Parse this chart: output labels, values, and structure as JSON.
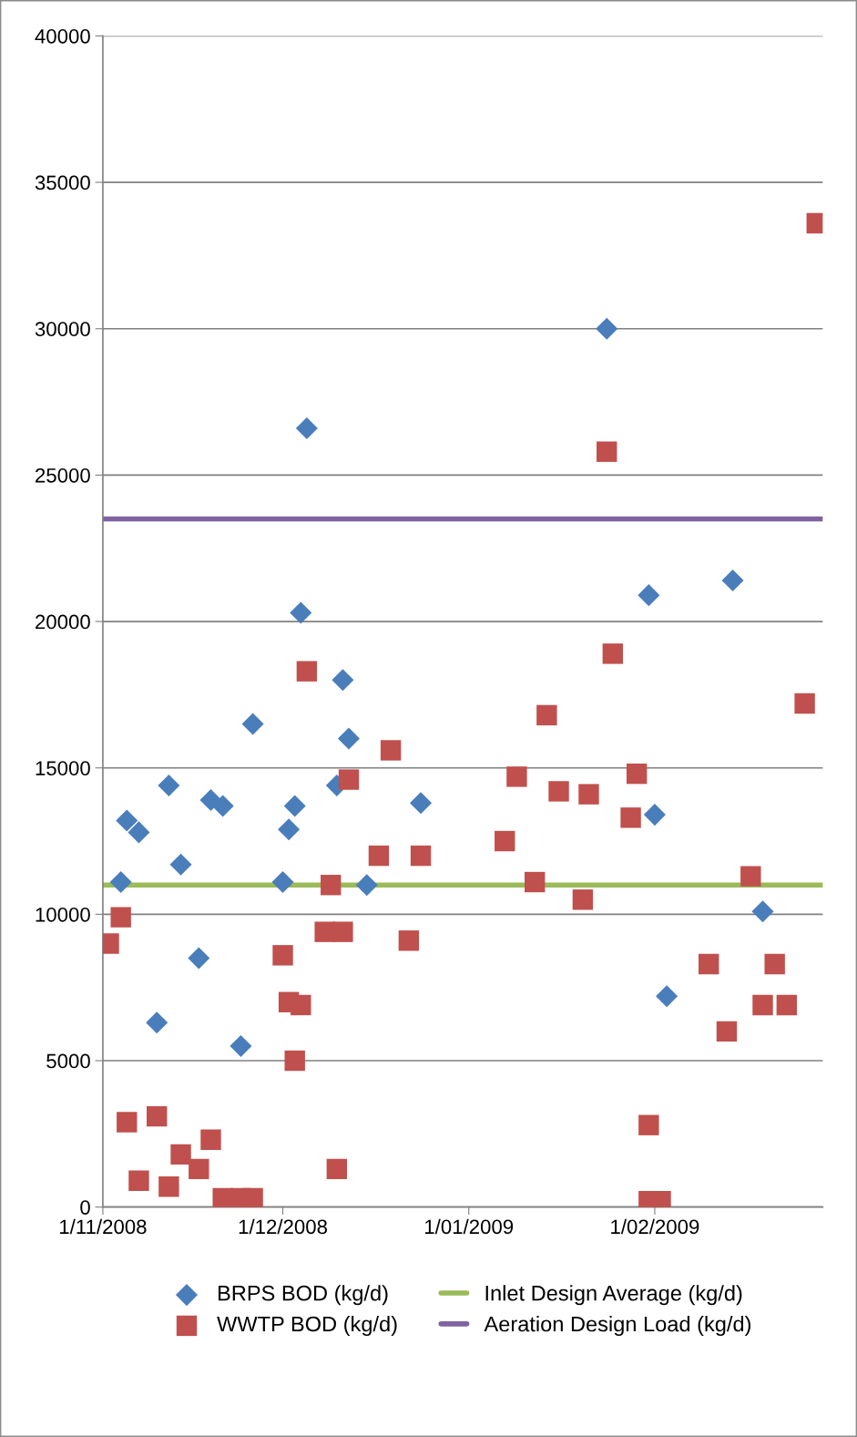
{
  "chart_data": {
    "type": "scatter",
    "series": [
      {
        "name": "BRPS BOD (kg/d)",
        "color": "#4a7ebb",
        "marker": "diamond",
        "x": [
          "2008-11-04",
          "2008-11-05",
          "2008-11-07",
          "2008-11-10",
          "2008-11-12",
          "2008-11-14",
          "2008-11-17",
          "2008-11-19",
          "2008-11-21",
          "2008-11-24",
          "2008-11-26",
          "2008-12-01",
          "2008-12-02",
          "2008-12-03",
          "2008-12-04",
          "2008-12-05",
          "2008-12-10",
          "2008-12-11",
          "2008-12-12",
          "2008-12-15",
          "2008-12-24",
          "2009-01-24",
          "2009-01-31",
          "2009-02-01",
          "2009-02-03",
          "2009-02-14",
          "2009-02-19"
        ],
        "values": [
          11100,
          13200,
          12800,
          6300,
          14400,
          11700,
          8500,
          13900,
          13700,
          5500,
          16500,
          11100,
          12900,
          13700,
          20300,
          26600,
          14400,
          18000,
          16000,
          11000,
          13800,
          30000,
          20900,
          13400,
          7200,
          21400,
          10100
        ]
      },
      {
        "name": "WWTP BOD (kg/d)",
        "color": "#c0504d",
        "marker": "square",
        "x": [
          "2008-11-02",
          "2008-11-04",
          "2008-11-05",
          "2008-11-07",
          "2008-11-10",
          "2008-11-12",
          "2008-11-14",
          "2008-11-17",
          "2008-11-19",
          "2008-11-21",
          "2008-11-24",
          "2008-11-26",
          "2008-12-01",
          "2008-12-02",
          "2008-12-03",
          "2008-12-04",
          "2008-12-05",
          "2008-12-08",
          "2008-12-09",
          "2008-12-10",
          "2008-12-11",
          "2008-12-12",
          "2008-12-17",
          "2008-12-19",
          "2008-12-22",
          "2008-12-24",
          "2009-01-07",
          "2009-01-09",
          "2009-01-12",
          "2009-01-14",
          "2009-01-16",
          "2009-01-20",
          "2009-01-21",
          "2009-01-24",
          "2009-01-25",
          "2009-01-28",
          "2009-01-29",
          "2009-01-31",
          "2009-01-31",
          "2009-02-02",
          "2009-02-10",
          "2009-02-13",
          "2009-02-17",
          "2009-02-19",
          "2009-02-21",
          "2009-02-23",
          "2009-02-26",
          "2009-02-28"
        ],
        "values": [
          9000,
          9900,
          2900,
          900,
          3100,
          700,
          1800,
          1300,
          2300,
          300,
          300,
          300,
          8600,
          7000,
          5000,
          6900,
          18300,
          9400,
          11000,
          1300,
          9400,
          14600,
          12000,
          15600,
          9100,
          12000,
          12500,
          14700,
          11100,
          16800,
          14200,
          10500,
          14100,
          25800,
          18900,
          13300,
          14800,
          2800,
          200,
          200,
          8300,
          6000,
          11300,
          6900,
          8300,
          6900,
          17200,
          33600
        ]
      },
      {
        "name": "Inlet Design Average (kg/d)",
        "color": "#9bbb59",
        "type": "line",
        "marker": "none",
        "x": [
          "2008-11-01",
          "2009-03-01"
        ],
        "values": [
          11000,
          11000
        ]
      },
      {
        "name": "Aeration Design Load (kg/d)",
        "color": "#8064a2",
        "type": "line",
        "marker": "none",
        "x": [
          "2008-11-01",
          "2009-03-01"
        ],
        "values": [
          23500,
          23500
        ]
      }
    ],
    "xlim": [
      "2008-11-01",
      "2009-03-01"
    ],
    "xticks": [
      {
        "value": "2008-11-01",
        "label": "1/11/2008"
      },
      {
        "value": "2008-12-01",
        "label": "1/12/2008"
      },
      {
        "value": "2009-01-01",
        "label": "1/01/2009"
      },
      {
        "value": "2009-02-01",
        "label": "1/02/2009"
      }
    ],
    "ylim": [
      0,
      40000
    ],
    "yticks": [
      0,
      5000,
      10000,
      15000,
      20000,
      25000,
      30000,
      35000,
      40000
    ],
    "grid": "y",
    "legend": "bottom"
  }
}
